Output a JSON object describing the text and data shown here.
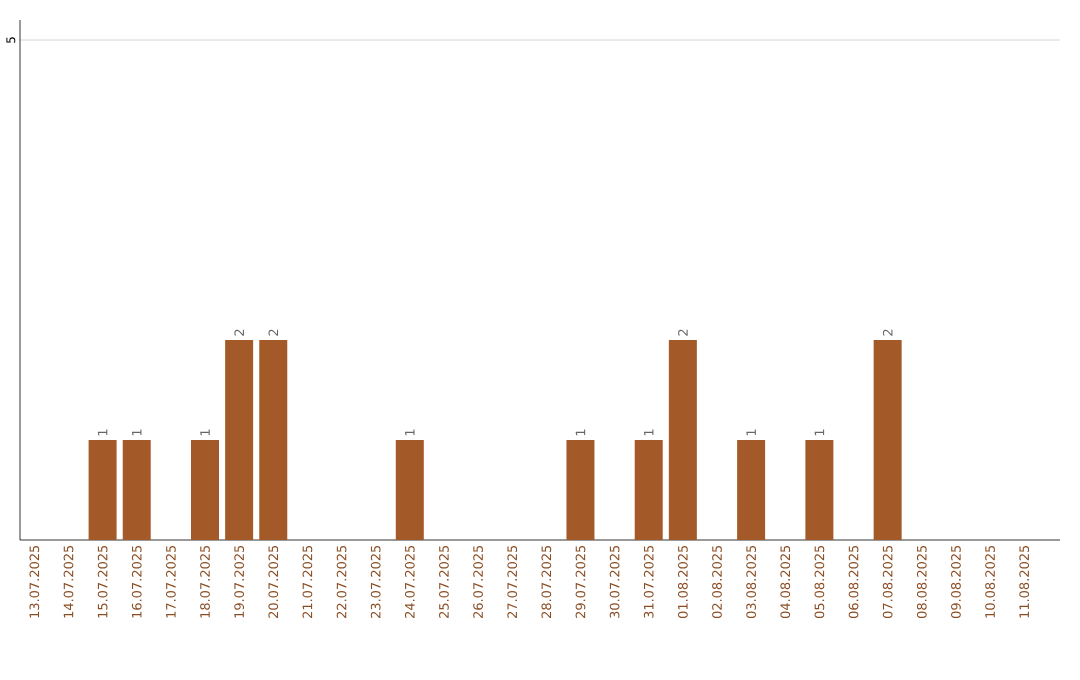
{
  "chart_data": {
    "type": "bar",
    "categories": [
      "13.07.2025",
      "14.07.2025",
      "15.07.2025",
      "16.07.2025",
      "17.07.2025",
      "18.07.2025",
      "19.07.2025",
      "20.07.2025",
      "21.07.2025",
      "22.07.2025",
      "23.07.2025",
      "24.07.2025",
      "25.07.2025",
      "26.07.2025",
      "27.07.2025",
      "28.07.2025",
      "29.07.2025",
      "30.07.2025",
      "31.07.2025",
      "01.08.2025",
      "02.08.2025",
      "03.08.2025",
      "04.08.2025",
      "05.08.2025",
      "06.08.2025",
      "07.08.2025",
      "08.08.2025",
      "09.08.2025",
      "10.08.2025",
      "11.08.2025"
    ],
    "values": [
      0,
      0,
      1,
      1,
      0,
      1,
      2,
      2,
      0,
      0,
      0,
      1,
      0,
      0,
      0,
      0,
      1,
      0,
      1,
      2,
      0,
      1,
      0,
      1,
      0,
      2,
      0,
      0,
      0,
      0
    ],
    "value_labels": [
      null,
      null,
      "1",
      "1",
      null,
      "1",
      "2",
      "2",
      null,
      null,
      null,
      "1",
      null,
      null,
      null,
      null,
      "1",
      null,
      "1",
      "2",
      null,
      "1",
      null,
      "1",
      null,
      "2",
      null,
      null,
      null,
      null
    ],
    "color": "#a35a28",
    "ylim": [
      0,
      5.2
    ],
    "yticks": [
      5
    ],
    "grid": "y"
  }
}
